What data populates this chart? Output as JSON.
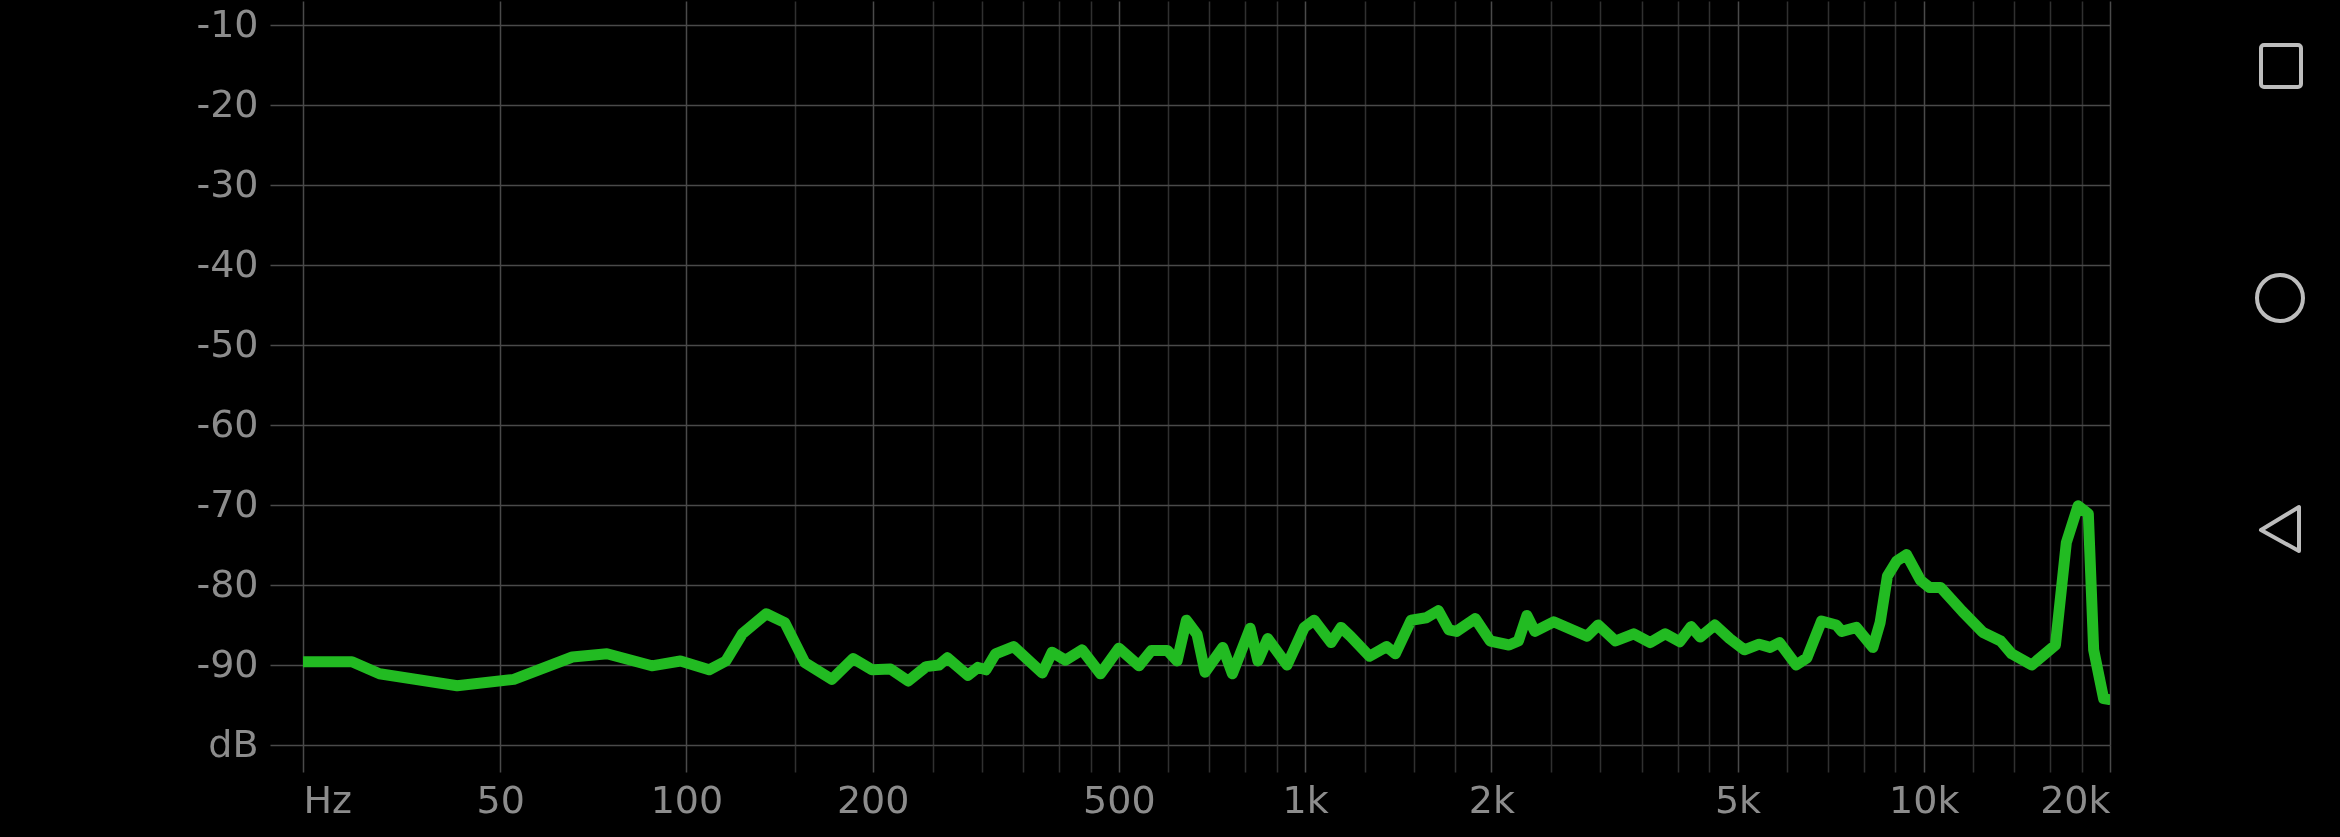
{
  "chart_data": {
    "type": "line",
    "xlabel": null,
    "x": [
      24,
      28.8,
      31.9,
      42.6,
      52.6,
      65.4,
      74.4,
      87.9,
      97.8,
      108.8,
      115.8,
      123.1,
      134.6,
      144.2,
      155.4,
      171.8,
      185.9,
      199.5,
      213.7,
      228.3,
      244,
      256,
      264,
      285,
      296,
      305,
      316,
      338,
      376,
      390,
      410,
      436,
      467,
      500,
      539,
      564,
      599,
      621,
      643,
      669,
      689,
      736,
      763,
      815,
      839,
      870,
      935,
      997,
      1034,
      1102,
      1143,
      1184,
      1271,
      1354,
      1399,
      1484,
      1570,
      1642,
      1708,
      1757,
      1884,
      1992,
      2136,
      2212,
      2283,
      2352,
      2522,
      2856,
      2977,
      3174,
      3398,
      3614,
      3820,
      4033,
      4207,
      4353,
      4596,
      4856,
      5130,
      5420,
      5645,
      5845,
      6220,
      6475,
      6835,
      7222,
      7370,
      7785,
      8275,
      8500,
      8735,
      9040,
      9380,
      9877,
      10210,
      10645,
      11545,
      12450,
      13315,
      13870,
      14945,
      16325,
      17000,
      17760,
      18450,
      18820,
      19530,
      19870
    ],
    "series": [
      {
        "color": "#22bb22",
        "values": [
          -89.6,
          -89.6,
          -91.1,
          -92.6,
          -91.8,
          -89.0,
          -88.6,
          -90.1,
          -89.5,
          -90.6,
          -89.5,
          -86.1,
          -83.6,
          -84.7,
          -89.7,
          -91.8,
          -89.2,
          -90.6,
          -90.5,
          -92.0,
          -90.2,
          -90.0,
          -89.1,
          -91.3,
          -90.3,
          -90.6,
          -88.6,
          -87.7,
          -91.0,
          -88.4,
          -89.4,
          -88.1,
          -91.1,
          -87.9,
          -90.1,
          -88.2,
          -88.2,
          -89.5,
          -84.4,
          -86.2,
          -90.9,
          -87.8,
          -91.1,
          -85.4,
          -89.5,
          -86.7,
          -90.0,
          -85.3,
          -84.4,
          -87.2,
          -85.3,
          -86.4,
          -88.9,
          -87.7,
          -88.6,
          -84.4,
          -84.1,
          -83.2,
          -85.6,
          -85.8,
          -84.2,
          -87.0,
          -87.5,
          -87.0,
          -83.8,
          -85.8,
          -84.6,
          -86.4,
          -85.0,
          -87.0,
          -86.1,
          -87.2,
          -86.1,
          -87.1,
          -85.2,
          -86.5,
          -85.0,
          -86.7,
          -88.1,
          -87.4,
          -87.8,
          -87.2,
          -90.0,
          -89.1,
          -84.5,
          -85.0,
          -85.8,
          -85.3,
          -87.8,
          -84.7,
          -78.9,
          -77.0,
          -76.2,
          -79.4,
          -80.3,
          -80.3,
          -83.3,
          -85.9,
          -87.0,
          -88.6,
          -90.0,
          -87.5,
          -74.7,
          -70.1,
          -71.1,
          -88.1,
          -94.2,
          -94.3
        ]
      }
    ],
    "xlim": [
      24,
      20000
    ],
    "xticks": [
      {
        "value": 24,
        "label": "Hz"
      },
      50,
      100,
      {
        "value": 150,
        "label": null
      },
      200,
      {
        "value": 250,
        "label": null
      },
      {
        "value": 300,
        "label": null
      },
      {
        "value": 350,
        "label": null
      },
      {
        "value": 400,
        "label": null
      },
      {
        "value": 450,
        "label": null
      },
      500,
      {
        "value": 600,
        "label": null
      },
      {
        "value": 700,
        "label": null
      },
      {
        "value": 800,
        "label": null
      },
      {
        "value": 900,
        "label": null
      },
      {
        "value": 1000,
        "label": "1k"
      },
      {
        "value": 1250,
        "label": null
      },
      {
        "value": 1500,
        "label": null
      },
      {
        "value": 1750,
        "label": null
      },
      {
        "value": 2000,
        "label": "2k"
      },
      {
        "value": 2500,
        "label": null
      },
      {
        "value": 3000,
        "label": null
      },
      {
        "value": 3500,
        "label": null
      },
      {
        "value": 4000,
        "label": null
      },
      {
        "value": 4500,
        "label": null
      },
      {
        "value": 5000,
        "label": "5k"
      },
      {
        "value": 6000,
        "label": null
      },
      {
        "value": 7000,
        "label": null
      },
      {
        "value": 8000,
        "label": null
      },
      {
        "value": 9000,
        "label": null
      },
      {
        "value": 10000,
        "label": "10k"
      },
      {
        "value": 12000,
        "label": null
      },
      {
        "value": 14000,
        "label": null
      },
      {
        "value": 16000,
        "label": null
      },
      {
        "value": 18000,
        "label": null
      },
      {
        "value": 20000,
        "label": "20k"
      }
    ],
    "ylim": [
      -100,
      -7
    ],
    "yticks": [
      {
        "value": -100,
        "label": "dB"
      },
      -90,
      -80,
      -70,
      -60,
      -50,
      -40,
      -30,
      -20,
      -10
    ],
    "log": "x",
    "grid": true,
    "line_style": "solid"
  }
}
